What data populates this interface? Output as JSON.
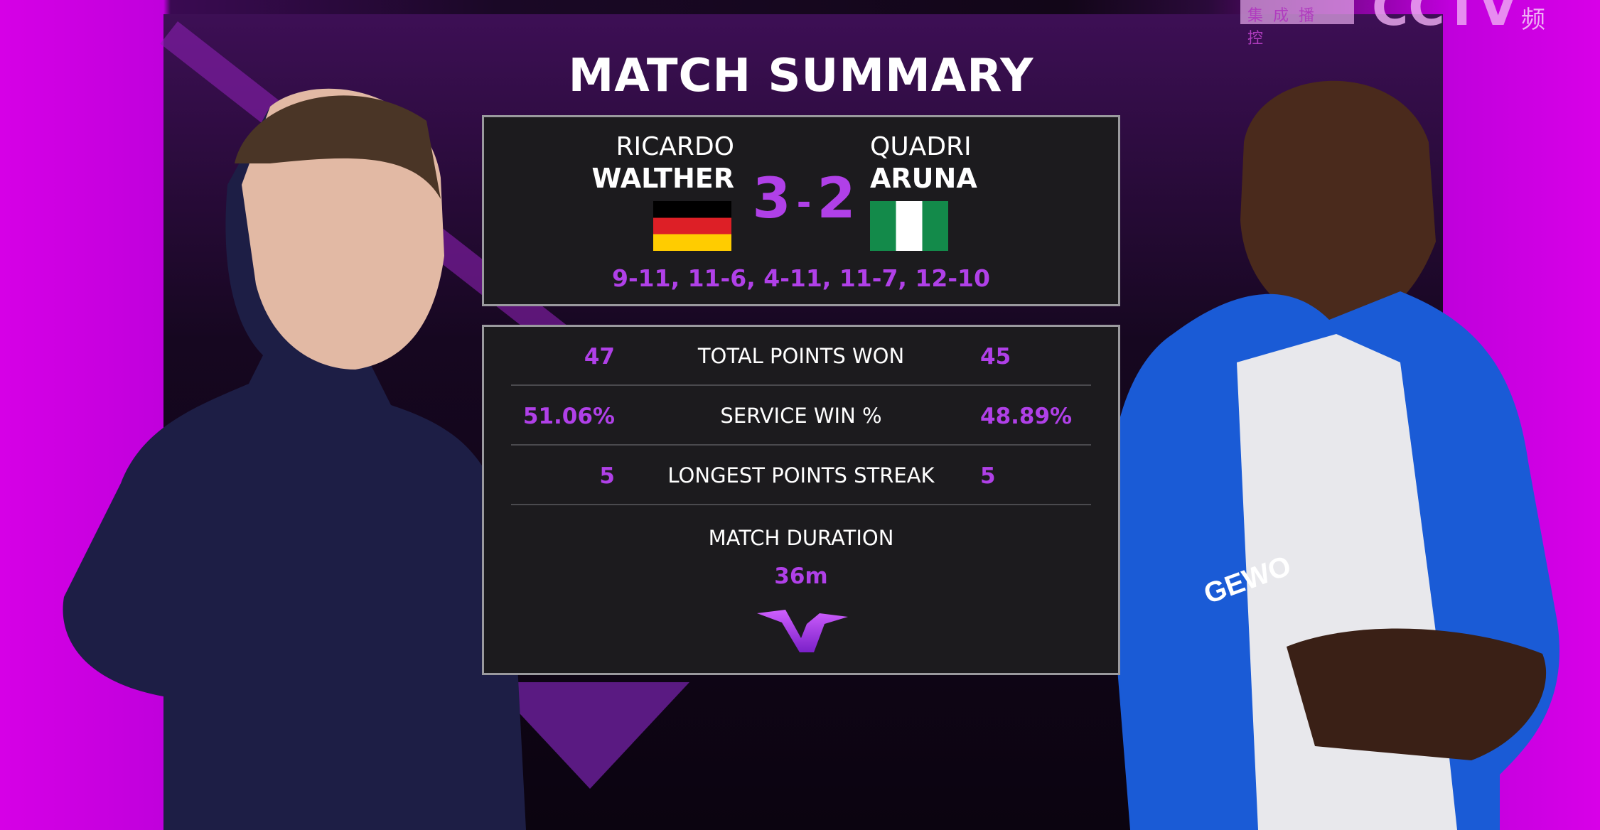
{
  "watermark": {
    "label": "集成播控",
    "suffix": "频"
  },
  "title": "MATCH SUMMARY",
  "players": [
    {
      "first": "RICARDO",
      "last": "WALTHER",
      "country": "Germany",
      "flag": "germany-flag"
    },
    {
      "first": "QUADRI",
      "last": "ARUNA",
      "country": "Nigeria",
      "flag": "nigeria-flag"
    }
  ],
  "score": {
    "left": "3",
    "separator": "-",
    "right": "2"
  },
  "games": "9-11, 11-6, 4-11, 11-7, 12-10",
  "stats": [
    {
      "label": "TOTAL POINTS WON",
      "left": "47",
      "right": "45"
    },
    {
      "label": "SERVICE WIN %",
      "left": "51.06%",
      "right": "48.89%"
    },
    {
      "label": "LONGEST POINTS STREAK",
      "left": "5",
      "right": "5"
    }
  ],
  "duration": {
    "label": "MATCH DURATION",
    "value": "36m"
  },
  "colors": {
    "accent": "#b040e8",
    "panel": "#1c1b1e",
    "background_magenta": "#d600e6"
  }
}
